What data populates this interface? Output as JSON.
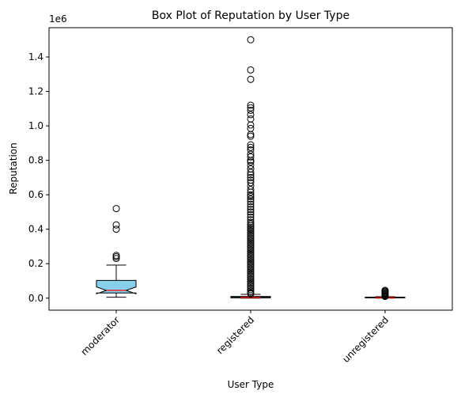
{
  "chart_data": {
    "type": "box",
    "title": "Box Plot of Reputation by User Type",
    "xlabel": "User Type",
    "ylabel": "Reputation",
    "y_offset_label": "1e6",
    "y_scale": 1000000,
    "ylim": [
      -70000,
      1570000
    ],
    "yticks": [
      0,
      200000,
      400000,
      600000,
      800000,
      1000000,
      1200000,
      1400000
    ],
    "ytick_labels": [
      "0.0",
      "0.2",
      "0.4",
      "0.6",
      "0.8",
      "1.0",
      "1.2",
      "1.4"
    ],
    "categories": [
      "moderator",
      "registered",
      "unregistered"
    ],
    "notched": true,
    "box_color": "#87ceeb",
    "median_color": "#ff0000",
    "boxes": [
      {
        "category": "moderator",
        "whisker_low": 5000,
        "q1": 30000,
        "median": 45000,
        "q3": 103000,
        "whisker_high": 192000,
        "notch_low": 25000,
        "notch_high": 65000,
        "outliers": [
          520000,
          425000,
          400000,
          248000,
          240000,
          230000
        ]
      },
      {
        "category": "registered",
        "whisker_low": 0,
        "q1": 1000,
        "median": 4000,
        "q3": 10000,
        "whisker_high": 22000,
        "notch_low": 3500,
        "notch_high": 4500,
        "outliers": [
          1500000,
          1325000,
          1270000,
          1120000,
          1105000,
          1090000,
          1065000,
          1040000,
          1005000,
          985000,
          950000,
          940000,
          890000,
          875000,
          860000,
          835000,
          820000,
          800000,
          790000,
          770000,
          750000,
          730000,
          715000,
          700000,
          685000,
          670000,
          650000,
          630000,
          615000,
          600000,
          590000,
          575000,
          560000,
          545000,
          530000,
          515000,
          500000,
          485000,
          470000,
          455000,
          440000,
          430000,
          420000,
          410000,
          400000,
          390000,
          380000,
          370000,
          360000,
          350000,
          340000,
          330000,
          320000,
          310000,
          300000,
          290000,
          280000,
          270000,
          260000,
          250000,
          240000,
          230000,
          220000,
          210000,
          200000,
          190000,
          180000,
          170000,
          160000,
          150000,
          140000,
          130000,
          120000,
          110000,
          100000,
          90000,
          80000,
          70000,
          60000,
          50000,
          40000,
          30000,
          25000
        ]
      },
      {
        "category": "unregistered",
        "whisker_low": 0,
        "q1": 1000,
        "median": 3000,
        "q3": 6000,
        "whisker_high": 8000,
        "notch_low": 2600,
        "notch_high": 3400,
        "outliers": [
          45000,
          40000,
          35000,
          30000,
          25000,
          20000,
          15000,
          12000,
          10000
        ]
      }
    ]
  }
}
